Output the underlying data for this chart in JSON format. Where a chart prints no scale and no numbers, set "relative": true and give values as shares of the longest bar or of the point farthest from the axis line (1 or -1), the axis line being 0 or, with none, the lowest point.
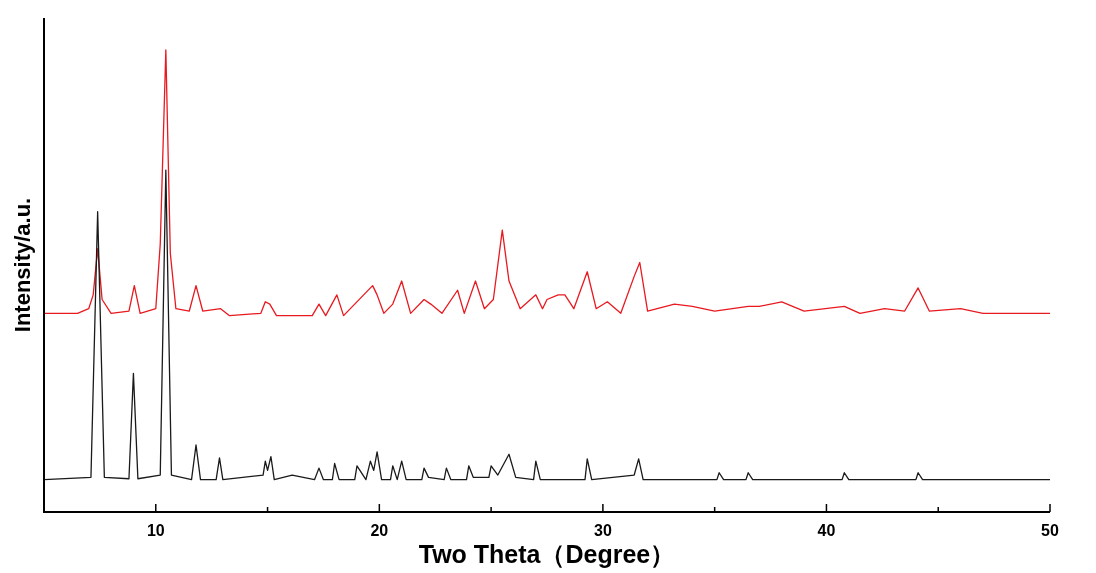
{
  "chart_data": {
    "type": "line",
    "relative": true,
    "xlabel": "Two Theta（Degree）",
    "ylabel": "Intensity/a.u.",
    "xlim": [
      5,
      50
    ],
    "xticks": [
      10,
      {
        "value": 15,
        "label": null
      },
      20,
      {
        "value": 25,
        "label": null
      },
      30,
      {
        "value": 35,
        "label": null
      },
      40,
      {
        "value": 45,
        "label": null
      },
      50
    ],
    "series": [
      {
        "color": "#e8191f",
        "x": [
          5,
          6.5,
          7.0,
          7.2,
          7.4,
          7.6,
          8.0,
          8.8,
          9.04,
          9.3,
          10.0,
          10.2,
          10.45,
          10.65,
          10.9,
          11.5,
          11.8,
          12.1,
          12.9,
          13.3,
          14.7,
          14.9,
          15.1,
          15.4,
          17.0,
          17.3,
          17.6,
          18.1,
          18.4,
          19.7,
          19.9,
          20.2,
          20.6,
          21.0,
          21.4,
          22.0,
          22.3,
          22.8,
          23.5,
          23.8,
          24.3,
          24.7,
          25.1,
          25.5,
          25.8,
          26.3,
          27.0,
          27.3,
          27.5,
          28.0,
          28.3,
          28.7,
          29.3,
          29.7,
          30.2,
          30.8,
          31.4,
          31.65,
          32.0,
          33.2,
          34.0,
          35.0,
          36.5,
          37.0,
          38.0,
          39.0,
          40.8,
          41.5,
          42.6,
          43.5,
          44.1,
          44.6,
          46.0,
          47.0,
          50
        ],
        "values": [
          0.43,
          0.43,
          0.44,
          0.47,
          0.57,
          0.46,
          0.43,
          0.435,
          0.49,
          0.43,
          0.44,
          0.58,
          1.0,
          0.56,
          0.44,
          0.435,
          0.49,
          0.435,
          0.44,
          0.425,
          0.43,
          0.455,
          0.45,
          0.425,
          0.425,
          0.45,
          0.425,
          0.47,
          0.425,
          0.49,
          0.47,
          0.43,
          0.45,
          0.5,
          0.43,
          0.46,
          0.45,
          0.43,
          0.48,
          0.43,
          0.5,
          0.44,
          0.46,
          0.61,
          0.5,
          0.44,
          0.47,
          0.44,
          0.46,
          0.47,
          0.47,
          0.44,
          0.52,
          0.44,
          0.455,
          0.43,
          0.51,
          0.54,
          0.435,
          0.45,
          0.445,
          0.435,
          0.445,
          0.445,
          0.455,
          0.435,
          0.445,
          0.43,
          0.44,
          0.435,
          0.485,
          0.435,
          0.44,
          0.43,
          0.43
        ]
      },
      {
        "color": "#1a1a1a",
        "x": [
          5,
          7.1,
          7.4,
          7.7,
          8.8,
          9.0,
          9.2,
          10.2,
          10.45,
          10.7,
          11.6,
          11.8,
          12.0,
          12.7,
          12.85,
          13.0,
          14.8,
          14.9,
          15.0,
          15.15,
          15.3,
          16.1,
          17.1,
          17.3,
          17.5,
          17.9,
          18.0,
          18.2,
          18.9,
          19.0,
          19.4,
          19.6,
          19.75,
          19.9,
          20.1,
          20.5,
          20.6,
          20.8,
          21.0,
          21.2,
          21.9,
          22.0,
          22.2,
          22.9,
          23.0,
          23.2,
          23.9,
          24.0,
          24.2,
          24.9,
          25.0,
          25.3,
          25.8,
          26.1,
          26.9,
          27.0,
          27.2,
          29.2,
          29.3,
          29.5,
          31.4,
          31.6,
          31.8,
          35.1,
          35.2,
          35.4,
          36.4,
          36.5,
          36.7,
          40.7,
          40.8,
          41.0,
          44.0,
          44.1,
          44.3,
          50
        ],
        "values": [
          0.07,
          0.075,
          0.65,
          0.075,
          0.072,
          0.3,
          0.072,
          0.08,
          0.74,
          0.08,
          0.07,
          0.145,
          0.07,
          0.07,
          0.117,
          0.07,
          0.08,
          0.11,
          0.09,
          0.12,
          0.07,
          0.08,
          0.07,
          0.095,
          0.07,
          0.07,
          0.105,
          0.07,
          0.07,
          0.1,
          0.07,
          0.11,
          0.09,
          0.13,
          0.07,
          0.07,
          0.1,
          0.07,
          0.11,
          0.07,
          0.07,
          0.095,
          0.075,
          0.07,
          0.095,
          0.07,
          0.07,
          0.1,
          0.075,
          0.075,
          0.1,
          0.08,
          0.125,
          0.075,
          0.07,
          0.11,
          0.07,
          0.07,
          0.115,
          0.07,
          0.08,
          0.115,
          0.07,
          0.07,
          0.085,
          0.07,
          0.07,
          0.085,
          0.07,
          0.07,
          0.085,
          0.07,
          0.07,
          0.085,
          0.07,
          0.07
        ]
      }
    ]
  }
}
